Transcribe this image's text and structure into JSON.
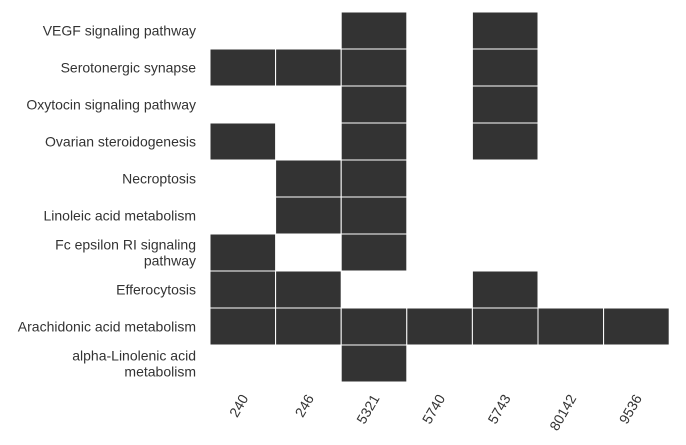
{
  "chart_data": {
    "type": "heatmap",
    "title": "",
    "xlabel": "",
    "ylabel": "",
    "x": [
      "240",
      "246",
      "5321",
      "5740",
      "5743",
      "80142",
      "9536"
    ],
    "y": [
      "VEGF signaling pathway",
      "Serotonergic synapse",
      "Oxytocin signaling pathway",
      "Ovarian steroidogenesis",
      "Necroptosis",
      "Linoleic acid metabolism",
      "Fc epsilon RI signaling pathway",
      "Efferocytosis",
      "Arachidonic acid metabolism",
      "alpha-Linolenic acid metabolism"
    ],
    "cells": [
      [
        0,
        0,
        1,
        0,
        1,
        0,
        0
      ],
      [
        1,
        1,
        1,
        0,
        1,
        0,
        0
      ],
      [
        0,
        0,
        1,
        0,
        1,
        0,
        0
      ],
      [
        1,
        0,
        1,
        0,
        1,
        0,
        0
      ],
      [
        0,
        1,
        1,
        0,
        0,
        0,
        0
      ],
      [
        0,
        1,
        1,
        0,
        0,
        0,
        0
      ],
      [
        1,
        0,
        1,
        0,
        0,
        0,
        0
      ],
      [
        1,
        1,
        0,
        0,
        1,
        0,
        0
      ],
      [
        1,
        1,
        1,
        1,
        1,
        1,
        1
      ],
      [
        0,
        0,
        1,
        0,
        0,
        0,
        0
      ]
    ],
    "fill_color": "#333333",
    "grid": false,
    "legend": "none"
  }
}
